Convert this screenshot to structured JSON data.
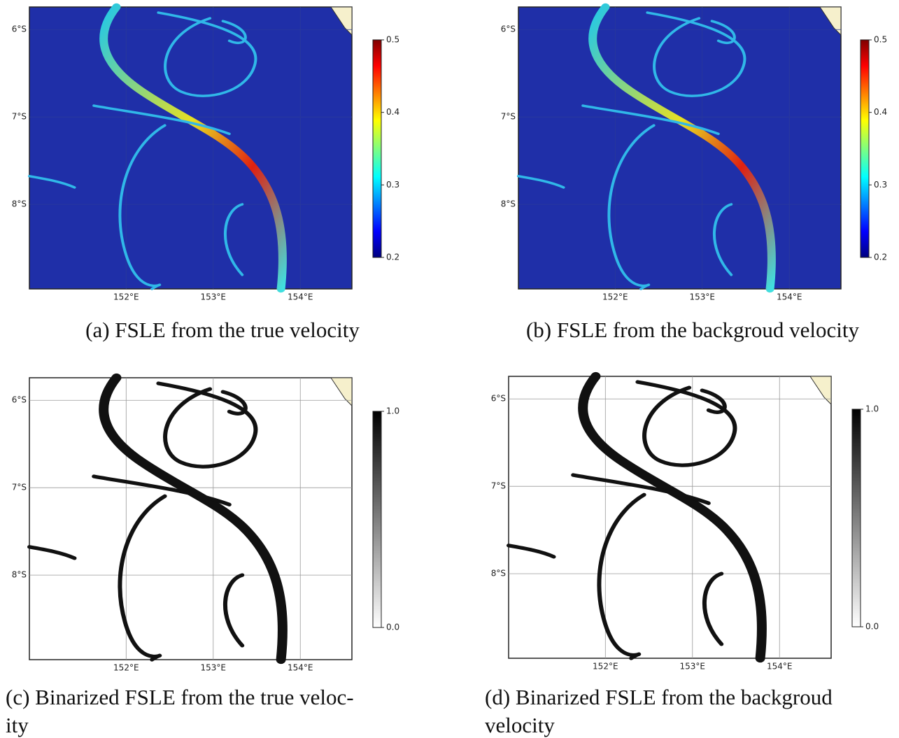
{
  "panels": [
    {
      "caption": [
        "(a) FSLE from the true velocity"
      ],
      "lat_labels": [
        "6°S",
        "7°S",
        "8°S"
      ],
      "lon_labels": [
        "152°E",
        "153°E",
        "154°E"
      ],
      "colorbar_ticks": [
        "0.5",
        "0.4",
        "0.3",
        "0.2"
      ],
      "colormap": "jet"
    },
    {
      "caption": [
        "(b) FSLE from the backgroud velocity"
      ],
      "lat_labels": [
        "6°S",
        "7°S",
        "8°S"
      ],
      "lon_labels": [
        "152°E",
        "153°E",
        "154°E"
      ],
      "colorbar_ticks": [
        "0.5",
        "0.4",
        "0.3",
        "0.2"
      ],
      "colormap": "jet"
    },
    {
      "caption": [
        "(c) Binarized FSLE from the true veloc-",
        "ity"
      ],
      "lat_labels": [
        "6°S",
        "7°S",
        "8°S"
      ],
      "lon_labels": [
        "152°E",
        "153°E",
        "154°E"
      ],
      "colorbar_ticks": [
        "1.0",
        "0.0"
      ],
      "colormap": "gray"
    },
    {
      "caption": [
        "(d) Binarized FSLE from the backgroud",
        "velocity"
      ],
      "lat_labels": [
        "6°S",
        "7°S",
        "8°S"
      ],
      "lon_labels": [
        "152°E",
        "153°E",
        "154°E"
      ],
      "colorbar_ticks": [
        "1.0",
        "0.0"
      ],
      "colormap": "gray"
    }
  ]
}
